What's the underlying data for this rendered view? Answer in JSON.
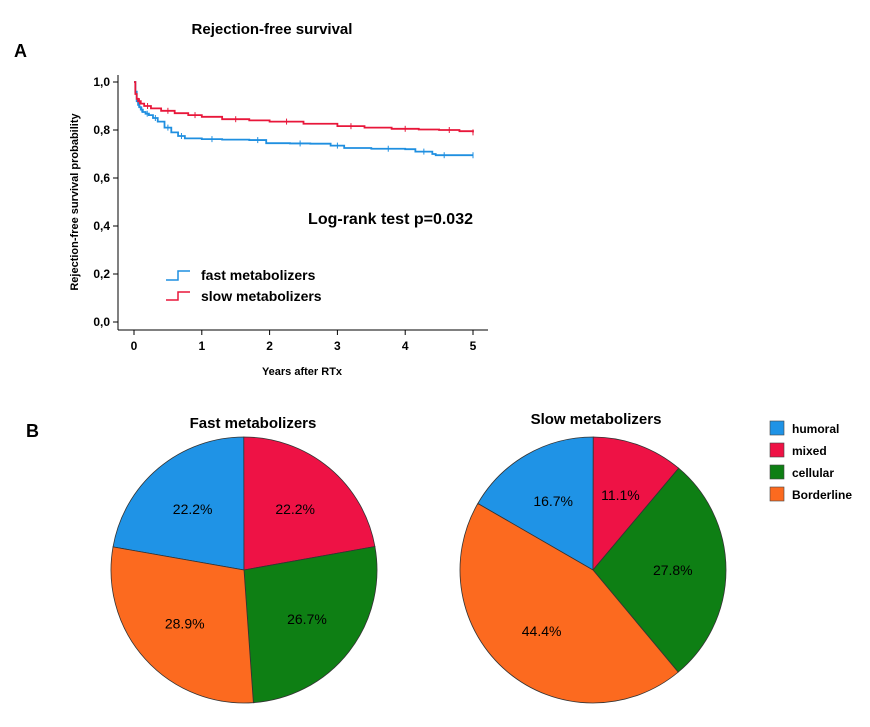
{
  "panel_a_label": "A",
  "panel_b_label": "B",
  "chart_data": [
    {
      "type": "line",
      "title": "Rejection-free survival",
      "xlabel": "Years after RTx",
      "ylabel": "Rejection-free survival probability",
      "xlim": [
        0,
        5
      ],
      "ylim": [
        0,
        1
      ],
      "x_ticks": [
        0,
        1,
        2,
        3,
        4,
        5
      ],
      "x_tick_labels": [
        "0",
        "1",
        "2",
        "3",
        "4",
        "5"
      ],
      "y_ticks": [
        0,
        0.2,
        0.4,
        0.6,
        0.8,
        1.0
      ],
      "y_tick_labels": [
        "0,0",
        "0,2",
        "0,4",
        "0,6",
        "0,8",
        "1,0"
      ],
      "annotation": "Log-rank test p=0.032",
      "series": [
        {
          "name": "fast metabolizers",
          "color": "#1f8fe0",
          "x": [
            0,
            0.02,
            0.04,
            0.06,
            0.08,
            0.1,
            0.13,
            0.17,
            0.22,
            0.28,
            0.35,
            0.45,
            0.55,
            0.65,
            0.75,
            1.0,
            1.3,
            1.7,
            1.95,
            2.3,
            2.6,
            2.9,
            3.1,
            3.5,
            4.0,
            4.15,
            4.4,
            4.45,
            4.7,
            5.0
          ],
          "y": [
            1.0,
            0.96,
            0.92,
            0.905,
            0.895,
            0.885,
            0.875,
            0.868,
            0.862,
            0.85,
            0.835,
            0.81,
            0.79,
            0.775,
            0.765,
            0.762,
            0.76,
            0.758,
            0.745,
            0.744,
            0.743,
            0.735,
            0.725,
            0.722,
            0.72,
            0.71,
            0.7,
            0.695,
            0.695,
            0.695
          ]
        },
        {
          "name": "slow metabolizers",
          "color": "#e8173a",
          "x": [
            0,
            0.02,
            0.04,
            0.06,
            0.1,
            0.15,
            0.25,
            0.4,
            0.6,
            0.8,
            1.0,
            1.3,
            1.7,
            2.0,
            2.5,
            3.0,
            3.4,
            3.8,
            4.2,
            4.5,
            4.8,
            5.0
          ],
          "y": [
            1.0,
            0.95,
            0.93,
            0.92,
            0.91,
            0.9,
            0.89,
            0.88,
            0.87,
            0.862,
            0.855,
            0.845,
            0.84,
            0.835,
            0.826,
            0.816,
            0.81,
            0.805,
            0.802,
            0.8,
            0.795,
            0.79
          ]
        }
      ]
    },
    {
      "type": "pie",
      "title": "Fast metabolizers",
      "categories": [
        "humoral",
        "mixed",
        "cellular",
        "Borderline"
      ],
      "values": [
        22.2,
        22.2,
        26.7,
        28.9
      ],
      "labels": [
        "22.2%",
        "22.2%",
        "26.7%",
        "28.9%"
      ],
      "colors": [
        "#1f93e6",
        "#ee1245",
        "#0e7f14",
        "#fc6a1f"
      ]
    },
    {
      "type": "pie",
      "title": "Slow metabolizers",
      "categories": [
        "humoral",
        "mixed",
        "cellular",
        "Borderline"
      ],
      "values": [
        16.7,
        11.1,
        27.8,
        44.4
      ],
      "labels": [
        "16.7%",
        "11.1%",
        "27.8%",
        "44.4%"
      ],
      "colors": [
        "#1f93e6",
        "#ee1245",
        "#0e7f14",
        "#fc6a1f"
      ]
    }
  ],
  "legend_b": {
    "items": [
      {
        "label": "humoral",
        "color": "#1f93e6"
      },
      {
        "label": "mixed",
        "color": "#ee1245"
      },
      {
        "label": "cellular",
        "color": "#0e7f14"
      },
      {
        "label": "Borderline",
        "color": "#fc6a1f"
      }
    ]
  }
}
